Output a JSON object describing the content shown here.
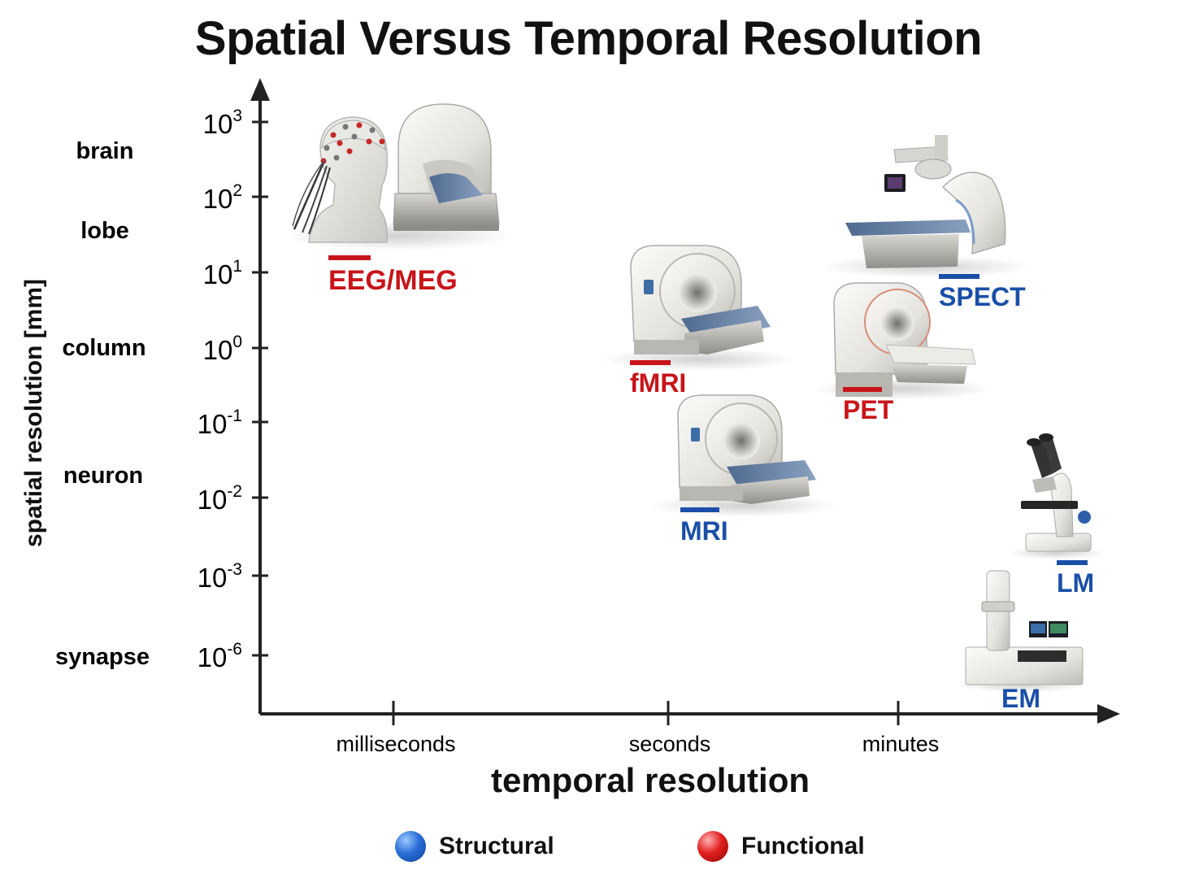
{
  "title": "Spatial Versus Temporal Resolution",
  "x_axis": {
    "label": "temporal resolution",
    "ticks": [
      "milliseconds",
      "seconds",
      "minutes"
    ]
  },
  "y_axis": {
    "label": "spatial resolution [mm]",
    "ticks": [
      {
        "base": "10",
        "exp": "3"
      },
      {
        "base": "10",
        "exp": "2"
      },
      {
        "base": "10",
        "exp": "1"
      },
      {
        "base": "10",
        "exp": "0"
      },
      {
        "base": "10",
        "exp": "-1"
      },
      {
        "base": "10",
        "exp": "-2"
      },
      {
        "base": "10",
        "exp": "-3"
      },
      {
        "base": "10",
        "exp": "-6"
      }
    ],
    "scale_names": [
      "brain",
      "lobe",
      "column",
      "neuron",
      "synapse"
    ]
  },
  "methods": [
    {
      "id": "eeg-meg",
      "label": "EEG/MEG",
      "category": "Functional",
      "device": "eeg-cap-and-meg-scanner"
    },
    {
      "id": "fmri",
      "label": "fMRI",
      "category": "Functional",
      "device": "mri-scanner"
    },
    {
      "id": "pet",
      "label": "PET",
      "category": "Functional",
      "device": "pet-scanner"
    },
    {
      "id": "spect",
      "label": "SPECT",
      "category": "Structural",
      "device": "spect-gantry"
    },
    {
      "id": "mri",
      "label": "MRI",
      "category": "Structural",
      "device": "mri-scanner"
    },
    {
      "id": "lm",
      "label": "LM",
      "category": "Structural",
      "device": "light-microscope"
    },
    {
      "id": "em",
      "label": "EM",
      "category": "Structural",
      "device": "electron-microscope"
    }
  ],
  "legend": [
    {
      "label": "Structural",
      "color": "#1f5fbf"
    },
    {
      "label": "Functional",
      "color": "#c8141a"
    }
  ],
  "colors": {
    "structural": "#1a4fa8",
    "functional": "#c8141a"
  }
}
